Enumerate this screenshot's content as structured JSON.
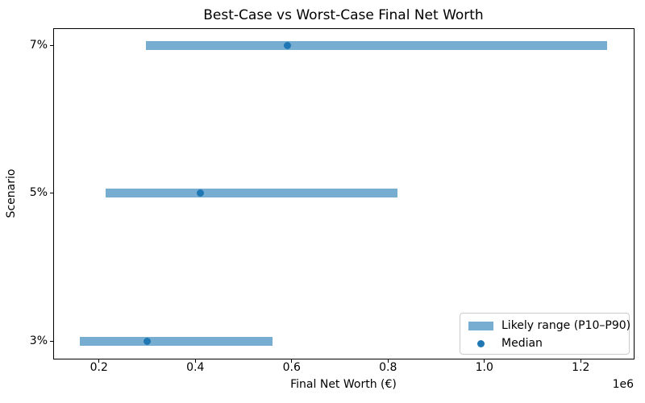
{
  "chart_data": {
    "type": "bar",
    "subtype": "horizontal-range-bar",
    "title": "Best-Case vs Worst-Case Final Net Worth",
    "xlabel": "Final Net Worth (€)",
    "ylabel": "Scenario",
    "x_offset_label": "1e6",
    "categories_top_to_bottom": [
      "7%",
      "5%",
      "3%"
    ],
    "series": [
      {
        "name": "P10",
        "values": [
          297000,
          214000,
          160000
        ]
      },
      {
        "name": "Median",
        "values": [
          591000,
          410000,
          300000
        ]
      },
      {
        "name": "P90",
        "values": [
          1255000,
          820000,
          560000
        ]
      }
    ],
    "xlim": [
      105000,
      1310000
    ],
    "xticks": [
      200000,
      400000,
      600000,
      800000,
      1000000,
      1200000
    ],
    "xtick_labels": [
      "0.2",
      "0.4",
      "0.6",
      "0.8",
      "1.0",
      "1.2"
    ],
    "grid": false,
    "legend": {
      "position": "lower right",
      "entries": [
        {
          "label": "Likely range (P10–P90)",
          "swatch": "bar",
          "color": "#78add2"
        },
        {
          "label": "Median",
          "swatch": "dot",
          "color": "#1f77b4"
        }
      ]
    },
    "colors": {
      "range_bar": "#78add2",
      "median_dot": "#1f77b4",
      "spine": "#000000"
    }
  }
}
